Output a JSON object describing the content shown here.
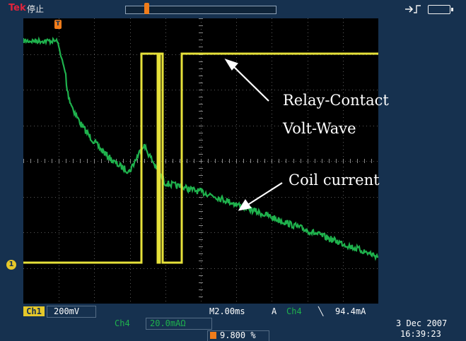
{
  "header": {
    "brand": "Tek",
    "status": "停止"
  },
  "annotations": {
    "relay_line1": "Relay-Contact",
    "relay_line2": "Volt-Wave",
    "coil": "Coil current"
  },
  "markers": {
    "ch1": "1",
    "trigger": "T"
  },
  "status": {
    "ch1_label": "Ch1",
    "ch1_scale": "200mV",
    "timebase": "M2.00ms",
    "trigger_mode": "A",
    "trigger_source": "Ch4",
    "trigger_slope": "╲",
    "trigger_level": "94.4mA",
    "ch4_label": "Ch4",
    "ch4_scale": "20.0mAΩ",
    "trigger_position": "9.800 %",
    "date": "3 Dec  2007",
    "time": "16:39:23"
  },
  "colors": {
    "ch1_trace": "#e6e13a",
    "ch4_trace": "#1fb24d",
    "background": "#000000",
    "frame": "#16314f",
    "trigger_marker": "#f07c1a"
  },
  "icons": [
    "trigger-icon",
    "battery-icon"
  ]
}
